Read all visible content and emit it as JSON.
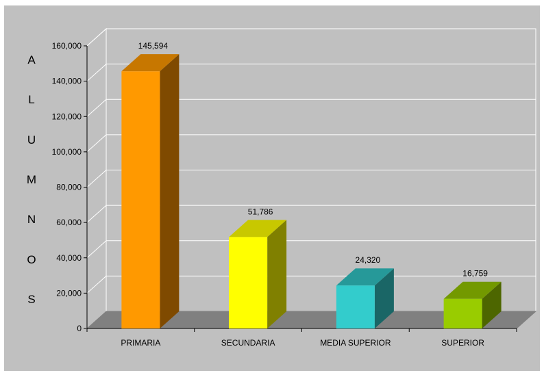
{
  "chart_data": {
    "type": "bar",
    "title": "",
    "ylabel": "ALUMNOS",
    "xlabel": "",
    "categories": [
      "PRIMARIA",
      "SECUNDARIA",
      "MEDIA SUPERIOR",
      "SUPERIOR"
    ],
    "values": [
      145594,
      51786,
      24320,
      16759
    ],
    "value_labels": [
      "145,594",
      "51,786",
      "24,320",
      "16,759"
    ],
    "ylim": [
      0,
      160000
    ],
    "yticks": [
      0,
      20000,
      40000,
      60000,
      80000,
      100000,
      120000,
      140000,
      160000
    ],
    "ytick_labels": [
      "0",
      "20,000",
      "40,000",
      "60,000",
      "80,000",
      "100,000",
      "120,000",
      "140,000",
      "160,000"
    ],
    "grid": true,
    "legend": "none",
    "style": "3d-column",
    "colors": {
      "background": "#c0c0c0",
      "floor": "#808080",
      "gridline": "#ffffff",
      "bars": [
        {
          "front": "#ff9900",
          "top": "#c77700",
          "side": "#7f4a00"
        },
        {
          "front": "#ffff00",
          "top": "#c8c800",
          "side": "#808000"
        },
        {
          "front": "#33cccc",
          "top": "#269999",
          "side": "#1a6666"
        },
        {
          "front": "#99cc00",
          "top": "#739900",
          "side": "#4d6600"
        }
      ]
    }
  }
}
